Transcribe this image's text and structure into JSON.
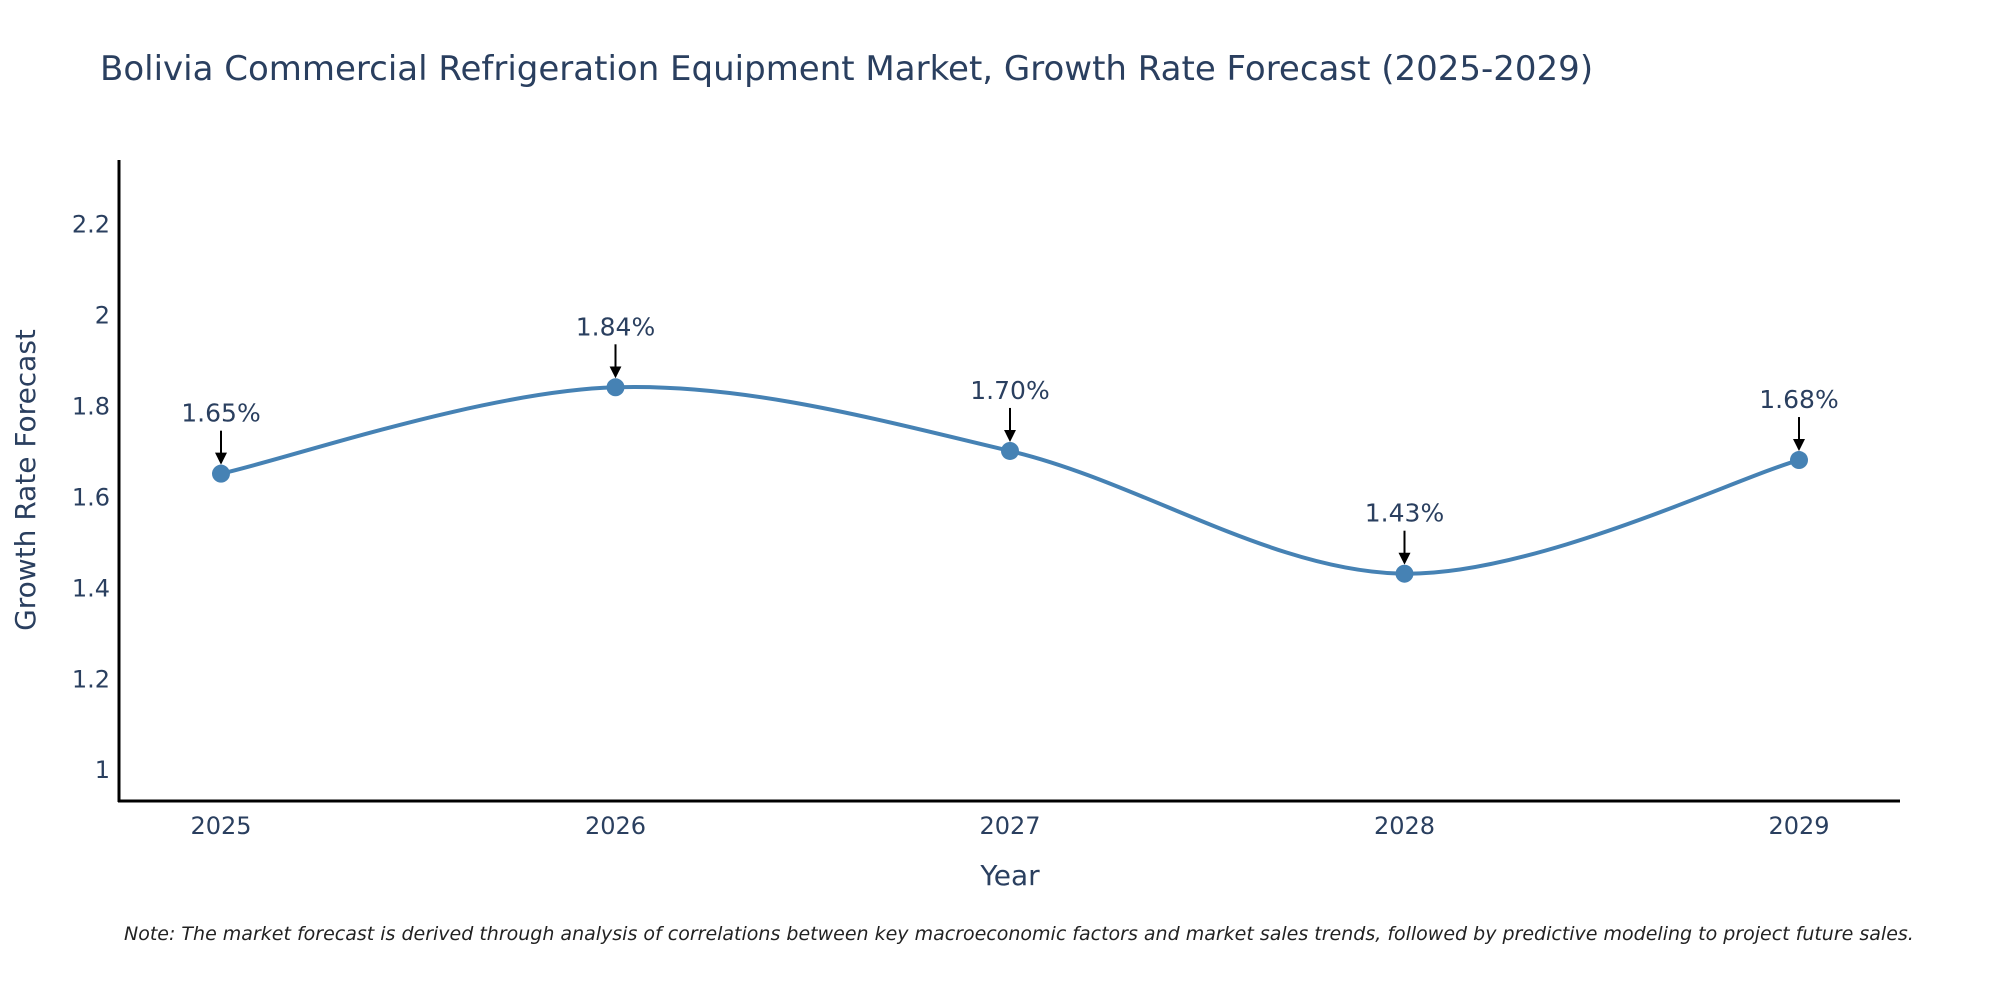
{
  "chart_data": {
    "type": "line",
    "title": "Bolivia Commercial Refrigeration Equipment Market, Growth Rate Forecast (2025-2029)",
    "xlabel": "Year",
    "ylabel": "Growth Rate Forecast",
    "categories": [
      "2025",
      "2026",
      "2027",
      "2028",
      "2029"
    ],
    "values": [
      1.65,
      1.84,
      1.7,
      1.43,
      1.68
    ],
    "annotations": [
      "1.65%",
      "1.84%",
      "1.70%",
      "1.43%",
      "1.68%"
    ],
    "yticks": [
      "1",
      "1.2",
      "1.4",
      "1.6",
      "1.8",
      "2",
      "2.2"
    ],
    "ytick_values": [
      1,
      1.2,
      1.4,
      1.6,
      1.8,
      2,
      2.2
    ],
    "ylim": [
      0.93,
      2.34
    ],
    "grid": false,
    "line_color": "#4682b4",
    "note": "Note: The market forecast is derived through analysis of correlations between key macroeconomic factors and market sales trends, followed by predictive modeling to project future sales."
  }
}
